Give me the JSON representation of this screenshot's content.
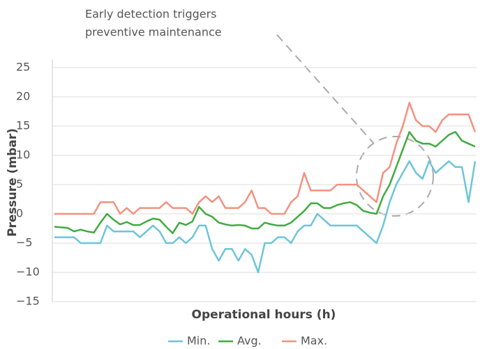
{
  "chart_data": {
    "type": "line",
    "annotation": [
      "Early detection triggers",
      "preventive maintenance"
    ],
    "ylabel": "Pressure (mbar)",
    "xlabel": "Operational hours (h)",
    "ylim": [
      -15,
      25
    ],
    "yticks": [
      25,
      20,
      15,
      10,
      5,
      0,
      {
        "value": -5,
        "label": "−5"
      },
      {
        "value": -10,
        "label": "−10"
      },
      {
        "value": -15,
        "label": "−15"
      }
    ],
    "grid": true,
    "legend": "bottom",
    "series": [
      {
        "name": "Min.",
        "color": "#6cc5d8",
        "values": [
          -4,
          -4,
          -4,
          -4,
          -5,
          -5,
          -5,
          -5,
          -2,
          -3,
          -3,
          -3,
          -3,
          -4,
          -3,
          -2,
          -3,
          -5,
          -5,
          -4,
          -5,
          -4,
          -2,
          -2,
          -6,
          -8,
          -6,
          -6,
          -8,
          -6,
          -7,
          -10,
          -5,
          -5,
          -4,
          -4,
          -5,
          -3,
          -2,
          -2,
          0,
          -1,
          -2,
          -2,
          -2,
          -2,
          -2,
          -3,
          -4,
          -5,
          -2,
          2,
          5,
          7,
          9,
          7,
          6,
          9,
          7,
          8,
          9,
          8,
          8,
          2,
          9
        ]
      },
      {
        "name": "Avg.",
        "color": "#3fab3f",
        "values": [
          -2.2,
          -2.3,
          -2.4,
          -3,
          -2.7,
          -3,
          -3.2,
          -1.5,
          0,
          -1,
          -1.8,
          -1.4,
          -1.9,
          -1.9,
          -1.3,
          -0.8,
          -1,
          -2.2,
          -3.3,
          -1.5,
          -1.9,
          -1.3,
          1.2,
          0,
          -0.5,
          -1.5,
          -1.8,
          -2,
          -1.9,
          -2,
          -2.5,
          -2.5,
          -1.5,
          -1.8,
          -2,
          -2,
          -1.5,
          -0.5,
          0.5,
          1.8,
          1.8,
          1,
          1,
          1.5,
          1.8,
          2,
          1.5,
          0.5,
          0.2,
          0,
          3,
          5,
          8,
          11,
          14,
          12.5,
          12,
          12,
          11.5,
          12.5,
          13.5,
          14,
          12.5,
          12,
          11.5
        ]
      },
      {
        "name": "Max.",
        "color": "#f4907f",
        "values": [
          0,
          0,
          0,
          0,
          0,
          0,
          0,
          2,
          2,
          2,
          0,
          1,
          0,
          1,
          1,
          1,
          1,
          2,
          1,
          1,
          1,
          0,
          2,
          3,
          2,
          3,
          1,
          1,
          1,
          2,
          4,
          1,
          1,
          0,
          0,
          0,
          2,
          3,
          7,
          4,
          4,
          4,
          4,
          5,
          5,
          5,
          5,
          4,
          3,
          2,
          7,
          8,
          12,
          15,
          19,
          16,
          15,
          15,
          14,
          16,
          17,
          17,
          17,
          17,
          14
        ]
      }
    ]
  }
}
